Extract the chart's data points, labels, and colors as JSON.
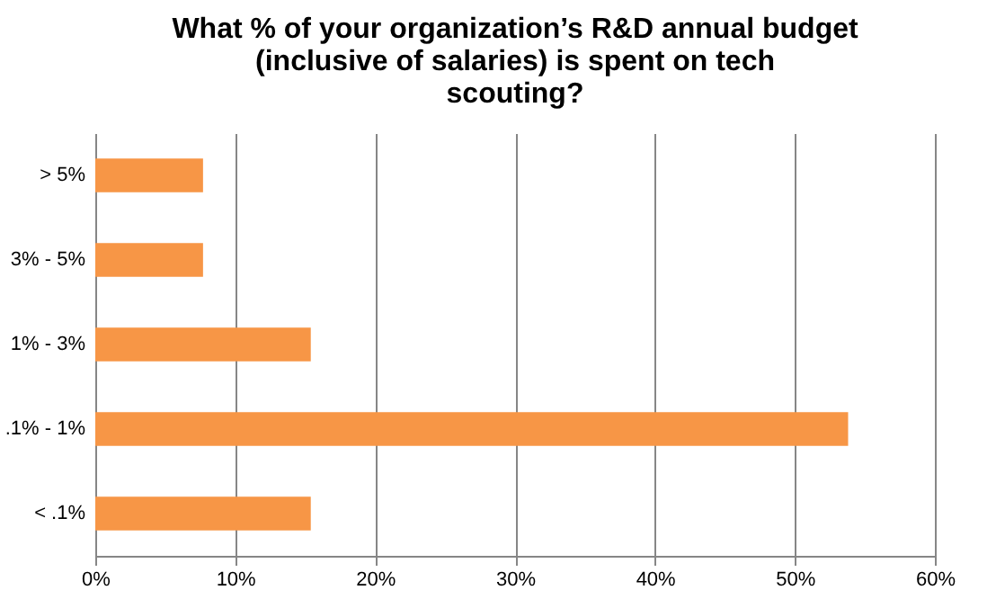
{
  "chart_data": {
    "type": "bar",
    "orientation": "horizontal",
    "title": "What % of your organization’s R&D annual budget (inclusive of salaries) is spent on tech scouting?",
    "categories": [
      "> 5%",
      "3% - 5%",
      "1% - 3%",
      ".1% - 1%",
      "< .1%"
    ],
    "values": [
      7.7,
      7.7,
      15.4,
      53.8,
      15.4
    ],
    "color": "#f79646",
    "xlim": [
      0,
      60
    ],
    "xticks": [
      {
        "value": 0,
        "label": "0%"
      },
      {
        "value": 10,
        "label": "10%"
      },
      {
        "value": 20,
        "label": "20%"
      },
      {
        "value": 30,
        "label": "30%"
      },
      {
        "value": 40,
        "label": "40%"
      },
      {
        "value": 50,
        "label": "50%"
      },
      {
        "value": 60,
        "label": "60%"
      }
    ],
    "grid": "x"
  }
}
